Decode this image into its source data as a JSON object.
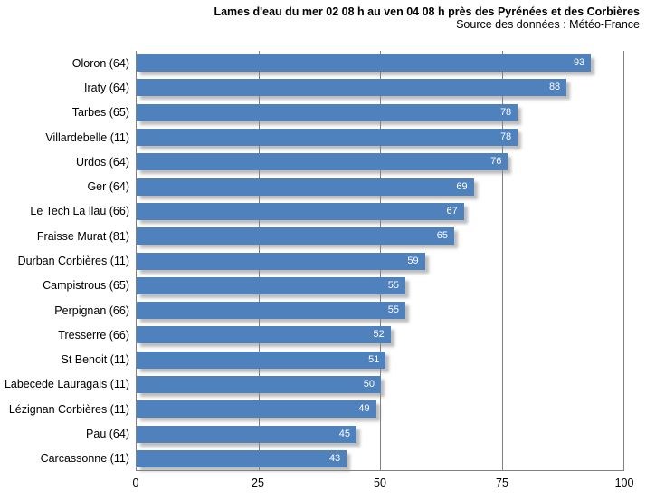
{
  "header": {
    "title": "Lames d'eau du mer 02 08 h au ven 04 08 h près des Pyrénées et des Corbières",
    "subtitle": "Source des données : Météo-France"
  },
  "colors": {
    "bar": "#4F81BD",
    "gridline": "#808080",
    "value_label": "#FFFFFF",
    "text": "#000000",
    "background": "#FFFFFF"
  },
  "chart_data": {
    "type": "bar",
    "orientation": "horizontal",
    "title": "Lames d'eau du mer 02 08 h au ven 04 08 h près des Pyrénées et des Corbières",
    "subtitle": "Source des données : Météo-France",
    "categories": [
      "Oloron (64)",
      "Iraty (64)",
      "Tarbes (65)",
      "Villardebelle (11)",
      "Urdos (64)",
      "Ger (64)",
      "Le Tech La llau (66)",
      "Fraisse Murat (81)",
      "Durban Corbières (11)",
      "Campistrous (65)",
      "Perpignan (66)",
      "Tresserre (66)",
      "St Benoit (11)",
      "Labecede Lauragais (11)",
      "Lézignan Corbières (11)",
      "Pau (64)",
      "Carcassonne (11)"
    ],
    "values": [
      93,
      88,
      78,
      78,
      76,
      69,
      67,
      65,
      59,
      55,
      55,
      52,
      51,
      50,
      49,
      45,
      43
    ],
    "xlabel": "",
    "ylabel": "",
    "xlim": [
      0,
      100
    ],
    "x_ticks": [
      0,
      25,
      50,
      75,
      100
    ],
    "grid": "vertical",
    "value_labels": "inside-end",
    "legend": "none"
  }
}
